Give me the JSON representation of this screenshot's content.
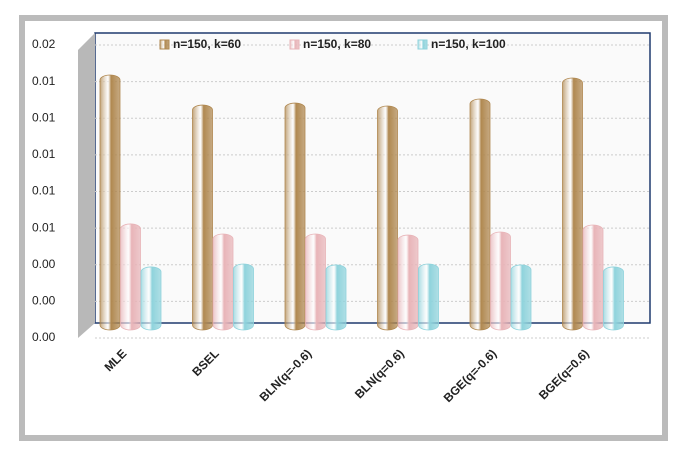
{
  "chart_data": {
    "type": "bar",
    "categories": [
      "MLE",
      "BSEL",
      "BLN(q=-0.6)",
      "BLN(q=0.6)",
      "BGE(q=-0.6)",
      "BGE(q=0.6)"
    ],
    "series": [
      {
        "name": "n=150, k=60",
        "color": "#b08850",
        "values": [
          0.01436,
          0.01272,
          0.01283,
          0.01267,
          0.01305,
          0.0142
        ]
      },
      {
        "name": "n=150, k=80",
        "color": "#e8b4b8",
        "values": [
          0.00623,
          0.00568,
          0.00568,
          0.00562,
          0.00579,
          0.00617
        ]
      },
      {
        "name": "n=150, k=100",
        "color": "#8fd3dc",
        "values": [
          0.00388,
          0.00404,
          0.00399,
          0.00404,
          0.00399,
          0.00388
        ]
      }
    ],
    "ylim": [
      0,
      0.016
    ],
    "yticks": [
      {
        "value": 0,
        "label": "0.00"
      },
      {
        "value": 0.002,
        "label": "0.00"
      },
      {
        "value": 0.004,
        "label": "0.00"
      },
      {
        "value": 0.006,
        "label": "0.01"
      },
      {
        "value": 0.008,
        "label": "0.01"
      },
      {
        "value": 0.01,
        "label": "0.01"
      },
      {
        "value": 0.012,
        "label": "0.01"
      },
      {
        "value": 0.014,
        "label": "0.01"
      },
      {
        "value": 0.016,
        "label": "0.02"
      }
    ],
    "grid": true,
    "legend": "top"
  }
}
